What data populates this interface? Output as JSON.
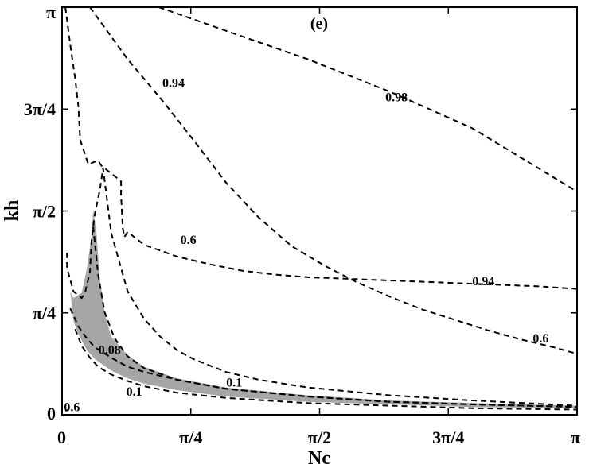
{
  "chart_data": {
    "type": "line",
    "panel_label": "(e)",
    "xlabel": "Nc",
    "ylabel": "kh",
    "xlim": [
      0,
      3.14159
    ],
    "ylim": [
      0,
      3.14159
    ],
    "x_ticks": [
      {
        "value": 0,
        "label": "0"
      },
      {
        "value": 0.7854,
        "label": "π/4"
      },
      {
        "value": 1.5708,
        "label": "π/2"
      },
      {
        "value": 2.3562,
        "label": "3π/4"
      },
      {
        "value": 3.14159,
        "label": "π"
      }
    ],
    "y_ticks": [
      {
        "value": 0,
        "label": "0"
      },
      {
        "value": 0.7854,
        "label": "π/4"
      },
      {
        "value": 1.5708,
        "label": "π/2"
      },
      {
        "value": 2.3562,
        "label": "3π/4"
      },
      {
        "value": 3.14159,
        "label": "π"
      }
    ],
    "grid": false,
    "contours": [
      {
        "level_label": "0.98",
        "style": "dashed",
        "x": [
          0.59,
          1.0,
          1.5,
          2.0,
          2.5,
          3.14159
        ],
        "y": [
          3.14159,
          2.96,
          2.74,
          2.49,
          2.21,
          1.72
        ]
      },
      {
        "level_label": "0.94",
        "style": "dashed",
        "x": [
          0.17,
          0.4,
          0.6,
          0.8,
          1.0,
          1.2,
          1.4,
          1.6,
          1.8,
          2.0,
          2.2,
          2.4,
          2.6,
          2.8,
          3.0,
          3.14159
        ],
        "y": [
          3.14159,
          2.74,
          2.44,
          2.12,
          1.79,
          1.52,
          1.3,
          1.15,
          1.02,
          0.91,
          0.81,
          0.73,
          0.65,
          0.58,
          0.52,
          0.47
        ]
      },
      {
        "level_label": "0.94",
        "style": "dashed",
        "x": [
          0.02,
          0.05,
          0.08,
          0.1,
          0.11,
          0.16,
          0.22,
          0.24,
          0.36,
          0.36,
          0.37,
          0.38,
          0.4,
          0.5,
          0.7,
          0.9,
          1.1,
          1.3,
          1.5,
          1.7,
          1.9,
          2.1,
          2.3,
          2.5,
          2.7,
          2.9,
          3.14159
        ],
        "y": [
          3.14159,
          2.85,
          2.59,
          2.37,
          2.12,
          1.93,
          1.96,
          1.92,
          1.8,
          1.69,
          1.44,
          1.37,
          1.41,
          1.31,
          1.22,
          1.16,
          1.11,
          1.08,
          1.06,
          1.05,
          1.04,
          1.03,
          1.02,
          1.01,
          1.0,
          0.99,
          0.97
        ]
      },
      {
        "level_label": "0.6",
        "style": "dashed",
        "x": [
          0.03,
          0.03,
          0.07,
          0.12,
          0.14,
          0.17,
          0.18,
          0.2,
          0.23,
          0.25,
          0.3,
          0.4,
          0.5,
          0.6,
          0.7,
          0.8,
          1.0,
          1.2,
          1.5,
          2.0,
          2.5,
          3.14159
        ],
        "y": [
          1.25,
          1.13,
          0.95,
          0.9,
          0.94,
          1.1,
          1.35,
          1.55,
          1.73,
          1.9,
          1.4,
          0.95,
          0.74,
          0.6,
          0.5,
          0.43,
          0.33,
          0.27,
          0.21,
          0.15,
          0.11,
          0.07
        ]
      },
      {
        "level_label": "0.6",
        "style": "dashed",
        "x": [
          0.02,
          0.04
        ],
        "y": [
          0.03,
          0.04
        ]
      },
      {
        "level_label": "0.08",
        "style": "dashed",
        "x": [
          0.05,
          0.1,
          0.15,
          0.2,
          0.3,
          0.4,
          0.5,
          0.7,
          1.0,
          1.5,
          2.0,
          2.5,
          3.14159
        ],
        "y": [
          0.82,
          0.68,
          0.59,
          0.52,
          0.44,
          0.37,
          0.33,
          0.27,
          0.2,
          0.14,
          0.1,
          0.08,
          0.06
        ]
      },
      {
        "level_label": "0.1",
        "style": "dashed",
        "x": [
          0.08,
          0.12,
          0.17,
          0.22,
          0.3,
          0.4,
          0.5,
          0.7,
          1.0,
          1.5,
          2.0,
          2.5,
          3.14159
        ],
        "y": [
          0.66,
          0.53,
          0.44,
          0.37,
          0.31,
          0.26,
          0.22,
          0.17,
          0.13,
          0.09,
          0.07,
          0.05,
          0.04
        ]
      },
      {
        "level_label": "0.1",
        "style": "dashed",
        "x": [
          0.19,
          0.22,
          0.26,
          0.32,
          0.4,
          0.5,
          0.7,
          1.0,
          1.5,
          2.0,
          2.5,
          3.14159
        ],
        "y": [
          1.45,
          1.08,
          0.79,
          0.59,
          0.45,
          0.36,
          0.27,
          0.2,
          0.14,
          0.1,
          0.08,
          0.06
        ]
      }
    ],
    "shaded_region": {
      "color": "#a6a6a6",
      "x": [
        0.05,
        0.07,
        0.12,
        0.15,
        0.18,
        0.19,
        0.21,
        0.23,
        0.26,
        0.3,
        0.4,
        0.5,
        0.7,
        1.0,
        1.5,
        2.0,
        2.5,
        3.14159,
        3.14159,
        2.5,
        2.0,
        1.5,
        1.0,
        0.7,
        0.5,
        0.4,
        0.3,
        0.2,
        0.15,
        0.1,
        0.07
      ],
      "y": [
        0.95,
        0.9,
        0.94,
        1.12,
        1.38,
        1.58,
        1.4,
        1.05,
        0.78,
        0.6,
        0.46,
        0.37,
        0.28,
        0.21,
        0.15,
        0.11,
        0.09,
        0.07,
        0.05,
        0.06,
        0.08,
        0.1,
        0.14,
        0.19,
        0.24,
        0.28,
        0.34,
        0.43,
        0.5,
        0.62,
        0.72
      ]
    },
    "labels": [
      {
        "text": "0.98",
        "x": 2.04,
        "y": 2.44
      },
      {
        "text": "0.94",
        "x": 0.68,
        "y": 2.55
      },
      {
        "text": "0.94",
        "x": 2.57,
        "y": 1.02
      },
      {
        "text": "0.6",
        "x": 0.77,
        "y": 1.34
      },
      {
        "text": "0.6",
        "x": 2.92,
        "y": 0.58
      },
      {
        "text": "0.6",
        "x": 0.06,
        "y": 0.05
      },
      {
        "text": "0.08",
        "x": 0.29,
        "y": 0.49
      },
      {
        "text": "0.1",
        "x": 1.05,
        "y": 0.24
      },
      {
        "text": "0.1",
        "x": 0.44,
        "y": 0.17
      }
    ]
  }
}
